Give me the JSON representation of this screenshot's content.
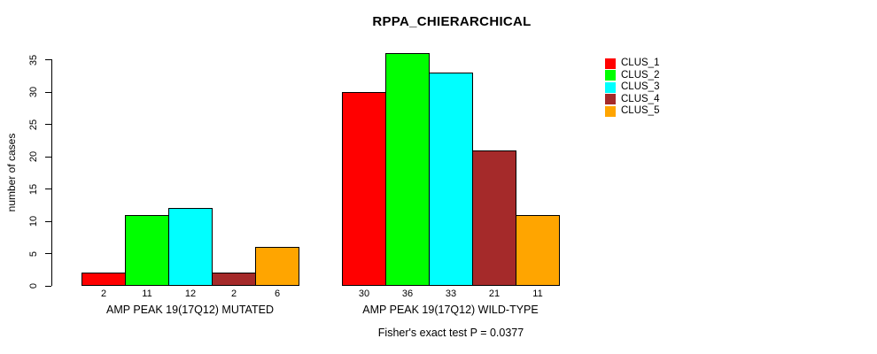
{
  "figure": {
    "background": "#FFFFFF",
    "text_color": "#000000"
  },
  "chart_data": {
    "type": "bar",
    "title": "RPPA_CHIERARCHICAL",
    "ylabel": "number of cases",
    "xlabel": "",
    "yticks": [
      0,
      5,
      10,
      15,
      20,
      25,
      30,
      35
    ],
    "ylim": [
      0,
      37
    ],
    "grid": false,
    "legend_position": "right",
    "bar_value_labels": true,
    "categories": [
      "AMP PEAK 19(17Q12) MUTATED",
      "AMP PEAK 19(17Q12) WILD-TYPE"
    ],
    "series": [
      {
        "name": "CLUS_1",
        "color": "#FF0000",
        "values": [
          2,
          30
        ]
      },
      {
        "name": "CLUS_2",
        "color": "#00FF00",
        "values": [
          11,
          36
        ]
      },
      {
        "name": "CLUS_3",
        "color": "#00FFFF",
        "values": [
          12,
          33
        ]
      },
      {
        "name": "CLUS_4",
        "color": "#A52A2A",
        "values": [
          2,
          21
        ]
      },
      {
        "name": "CLUS_5",
        "color": "#FFA500",
        "values": [
          6,
          11
        ]
      }
    ],
    "annotation": "Fisher's exact test P = 0.0377"
  }
}
